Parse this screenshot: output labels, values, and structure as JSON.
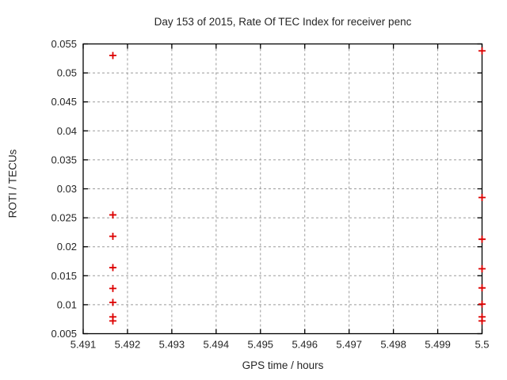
{
  "page": {
    "background_color": "#ffffff",
    "text_color": "#262626"
  },
  "chart_data": {
    "type": "scatter",
    "title": "Day 153 of 2015, Rate Of TEC Index for receiver penc",
    "xlabel": "GPS time / hours",
    "ylabel": "ROTI / TECUs",
    "xlim": [
      5.491,
      5.5
    ],
    "ylim": [
      0.005,
      0.055
    ],
    "grid": "dashed",
    "legend": "none",
    "marker": {
      "shape": "plus",
      "color": "#dd0000"
    },
    "grid_color": "#9b9b9b",
    "border_color": "#000000",
    "xticks": {
      "values": [
        5.491,
        5.492,
        5.493,
        5.494,
        5.495,
        5.496,
        5.497,
        5.498,
        5.499,
        5.5
      ],
      "labels": [
        "5.491",
        "5.492",
        "5.493",
        "5.494",
        "5.495",
        "5.496",
        "5.497",
        "5.498",
        "5.499",
        "5.5"
      ]
    },
    "yticks": {
      "values": [
        0.005,
        0.01,
        0.015,
        0.02,
        0.025,
        0.03,
        0.035,
        0.04,
        0.045,
        0.05,
        0.055
      ],
      "labels": [
        "0.005",
        "0.01",
        "0.015",
        "0.02",
        "0.025",
        "0.03",
        "0.035",
        "0.04",
        "0.045",
        "0.05",
        "0.055"
      ]
    },
    "series": [
      {
        "name": "roti",
        "points": [
          [
            5.49167,
            0.053
          ],
          [
            5.49167,
            0.0255
          ],
          [
            5.49167,
            0.0218
          ],
          [
            5.49167,
            0.0164
          ],
          [
            5.49167,
            0.0128
          ],
          [
            5.49167,
            0.0104
          ],
          [
            5.49167,
            0.0079
          ],
          [
            5.49167,
            0.0072
          ],
          [
            5.5,
            0.0538
          ],
          [
            5.5,
            0.0285
          ],
          [
            5.5,
            0.0213
          ],
          [
            5.5,
            0.0162
          ],
          [
            5.5,
            0.0129
          ],
          [
            5.5,
            0.0101
          ],
          [
            5.5,
            0.0079
          ],
          [
            5.5,
            0.0072
          ]
        ]
      }
    ]
  }
}
